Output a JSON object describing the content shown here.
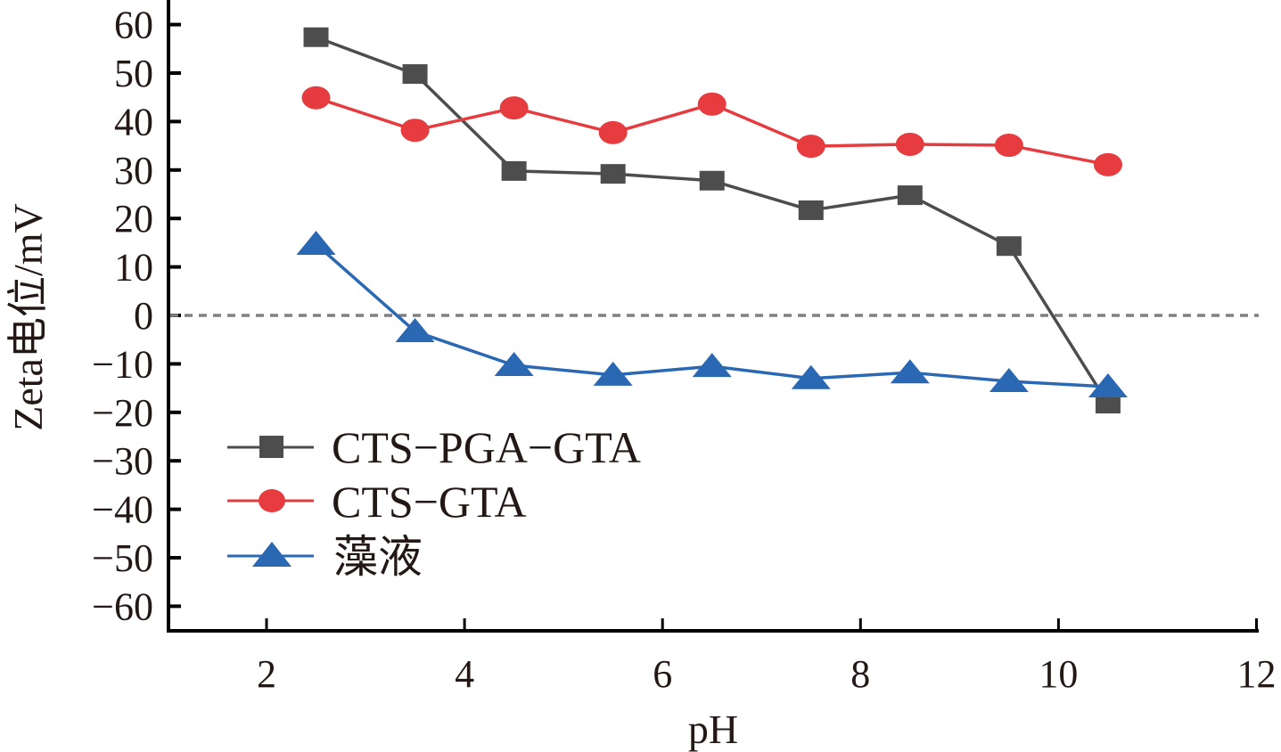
{
  "chart_data": {
    "type": "line",
    "title": "",
    "xlabel": "pH",
    "ylabel": "Zeta电位/mV",
    "xlim": [
      1,
      12
    ],
    "ylim": [
      -65,
      65
    ],
    "xticks": [
      2,
      4,
      6,
      8,
      10,
      12
    ],
    "yticks": [
      60,
      50,
      40,
      30,
      20,
      10,
      0,
      -10,
      -20,
      -30,
      -40,
      -50,
      -60
    ],
    "xtick_labels": [
      "2",
      "4",
      "6",
      "8",
      "10",
      "12"
    ],
    "ytick_labels": [
      "60",
      "50",
      "40",
      "30",
      "20",
      "10",
      "0",
      "−10",
      "−20",
      "−30",
      "−40",
      "−50",
      "−60"
    ],
    "reference_line": {
      "y": 0,
      "style": "dashed",
      "color": "#808080"
    },
    "grid": false,
    "legend_position": "lower-left",
    "x": [
      2.5,
      3.5,
      4.5,
      5.5,
      6.5,
      7.5,
      8.5,
      9.5,
      10.5
    ],
    "series": [
      {
        "name": "CTS−PGA−GTA",
        "marker": "square",
        "color": "#4d4d4d",
        "values": [
          57.4,
          49.8,
          29.8,
          29.2,
          27.8,
          21.7,
          24.8,
          14.3,
          -18.2
        ]
      },
      {
        "name": "CTS−GTA",
        "marker": "circle",
        "color": "#e63c3f",
        "values": [
          44.9,
          38.2,
          42.8,
          37.7,
          43.6,
          34.9,
          35.3,
          35.1,
          31.1
        ]
      },
      {
        "name": "藻液",
        "marker": "triangle",
        "color": "#2b68b3",
        "values": [
          14.7,
          -3.3,
          -10.3,
          -12.3,
          -10.5,
          -13.0,
          -11.8,
          -13.6,
          -14.7
        ]
      }
    ]
  }
}
